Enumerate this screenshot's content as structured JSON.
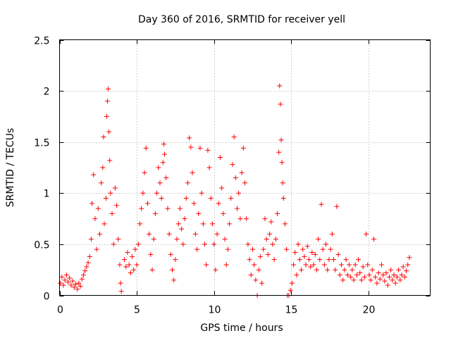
{
  "chart_data": {
    "type": "scatter",
    "title": "Day 360 of 2016, SRMTID for receiver yell",
    "xlabel": "GPS time / hours",
    "ylabel": "SRMTID / TECUs",
    "xlim": [
      0,
      24
    ],
    "ylim": [
      0,
      2.5
    ],
    "xticks": [
      0,
      5,
      10,
      15,
      20
    ],
    "yticks": [
      0,
      0.5,
      1,
      1.5,
      2,
      2.5
    ],
    "ytick_labels": [
      "0",
      "0.5",
      "1",
      "1.5",
      "2",
      "2.5"
    ],
    "grid": true,
    "marker": "+",
    "series": [
      {
        "name": "SRMTID",
        "color": "#ff0000",
        "points": [
          [
            0.05,
            0.12
          ],
          [
            0.15,
            0.18
          ],
          [
            0.25,
            0.1
          ],
          [
            0.35,
            0.15
          ],
          [
            0.45,
            0.2
          ],
          [
            0.55,
            0.13
          ],
          [
            0.65,
            0.17
          ],
          [
            0.75,
            0.1
          ],
          [
            0.85,
            0.14
          ],
          [
            0.95,
            0.08
          ],
          [
            1.05,
            0.11
          ],
          [
            1.15,
            0.06
          ],
          [
            1.25,
            0.12
          ],
          [
            1.35,
            0.09
          ],
          [
            1.45,
            0.16
          ],
          [
            1.55,
            0.2
          ],
          [
            1.65,
            0.24
          ],
          [
            1.75,
            0.28
          ],
          [
            1.85,
            0.32
          ],
          [
            1.95,
            0.38
          ],
          [
            2.05,
            0.55
          ],
          [
            2.1,
            0.9
          ],
          [
            2.2,
            1.18
          ],
          [
            2.3,
            0.75
          ],
          [
            2.4,
            0.45
          ],
          [
            2.5,
            0.85
          ],
          [
            2.6,
            0.6
          ],
          [
            2.7,
            1.1
          ],
          [
            2.8,
            1.25
          ],
          [
            2.85,
            1.55
          ],
          [
            2.9,
            0.7
          ],
          [
            3.0,
            0.95
          ],
          [
            3.05,
            1.75
          ],
          [
            3.1,
            1.9
          ],
          [
            3.15,
            2.02
          ],
          [
            3.2,
            1.6
          ],
          [
            3.25,
            1.32
          ],
          [
            3.3,
            1.0
          ],
          [
            3.4,
            0.8
          ],
          [
            3.5,
            0.5
          ],
          [
            3.6,
            1.05
          ],
          [
            3.7,
            0.88
          ],
          [
            3.8,
            0.55
          ],
          [
            3.9,
            0.3
          ],
          [
            3.95,
            0.12
          ],
          [
            4.0,
            0.04
          ],
          [
            4.2,
            0.35
          ],
          [
            4.3,
            0.28
          ],
          [
            4.4,
            0.42
          ],
          [
            4.5,
            0.3
          ],
          [
            4.6,
            0.22
          ],
          [
            4.7,
            0.38
          ],
          [
            4.8,
            0.25
          ],
          [
            4.9,
            0.45
          ],
          [
            5.0,
            0.3
          ],
          [
            5.1,
            0.5
          ],
          [
            5.2,
            0.7
          ],
          [
            5.3,
            0.85
          ],
          [
            5.4,
            1.0
          ],
          [
            5.5,
            1.2
          ],
          [
            5.6,
            1.44
          ],
          [
            5.7,
            0.9
          ],
          [
            5.8,
            0.6
          ],
          [
            5.9,
            0.4
          ],
          [
            6.0,
            0.25
          ],
          [
            6.1,
            0.55
          ],
          [
            6.2,
            0.8
          ],
          [
            6.3,
            1.0
          ],
          [
            6.4,
            1.25
          ],
          [
            6.5,
            1.1
          ],
          [
            6.6,
            0.95
          ],
          [
            6.7,
            1.3
          ],
          [
            6.75,
            1.48
          ],
          [
            6.8,
            1.38
          ],
          [
            6.9,
            1.15
          ],
          [
            7.0,
            0.85
          ],
          [
            7.1,
            0.6
          ],
          [
            7.2,
            0.4
          ],
          [
            7.3,
            0.25
          ],
          [
            7.4,
            0.15
          ],
          [
            7.5,
            0.35
          ],
          [
            7.6,
            0.55
          ],
          [
            7.7,
            0.7
          ],
          [
            7.8,
            0.85
          ],
          [
            7.9,
            0.65
          ],
          [
            8.0,
            0.5
          ],
          [
            8.1,
            0.75
          ],
          [
            8.2,
            0.95
          ],
          [
            8.3,
            1.1
          ],
          [
            8.4,
            1.54
          ],
          [
            8.5,
            1.45
          ],
          [
            8.6,
            1.2
          ],
          [
            8.7,
            0.9
          ],
          [
            8.8,
            0.6
          ],
          [
            8.9,
            0.45
          ],
          [
            9.0,
            0.8
          ],
          [
            9.1,
            1.44
          ],
          [
            9.2,
            1.0
          ],
          [
            9.3,
            0.7
          ],
          [
            9.4,
            0.5
          ],
          [
            9.5,
            0.3
          ],
          [
            9.6,
            1.42
          ],
          [
            9.7,
            1.25
          ],
          [
            9.8,
            0.95
          ],
          [
            9.9,
            0.7
          ],
          [
            10.0,
            0.5
          ],
          [
            10.1,
            0.25
          ],
          [
            10.2,
            0.6
          ],
          [
            10.3,
            0.9
          ],
          [
            10.4,
            1.35
          ],
          [
            10.5,
            1.05
          ],
          [
            10.6,
            0.8
          ],
          [
            10.7,
            0.55
          ],
          [
            10.8,
            0.3
          ],
          [
            10.9,
            0.45
          ],
          [
            11.0,
            0.7
          ],
          [
            11.1,
            0.95
          ],
          [
            11.2,
            1.28
          ],
          [
            11.3,
            1.55
          ],
          [
            11.4,
            1.15
          ],
          [
            11.5,
            0.85
          ],
          [
            11.6,
            1.0
          ],
          [
            11.7,
            0.75
          ],
          [
            11.8,
            1.2
          ],
          [
            11.9,
            1.44
          ],
          [
            12.0,
            1.1
          ],
          [
            12.1,
            0.75
          ],
          [
            12.2,
            0.5
          ],
          [
            12.3,
            0.35
          ],
          [
            12.4,
            0.2
          ],
          [
            12.5,
            0.45
          ],
          [
            12.6,
            0.3
          ],
          [
            12.7,
            0.15
          ],
          [
            12.8,
            0.0
          ],
          [
            12.9,
            0.25
          ],
          [
            13.0,
            0.38
          ],
          [
            13.1,
            0.12
          ],
          [
            13.2,
            0.45
          ],
          [
            13.3,
            0.75
          ],
          [
            13.4,
            0.55
          ],
          [
            13.5,
            0.4
          ],
          [
            13.6,
            0.6
          ],
          [
            13.7,
            0.72
          ],
          [
            13.8,
            0.5
          ],
          [
            13.9,
            0.35
          ],
          [
            14.0,
            0.55
          ],
          [
            14.1,
            0.8
          ],
          [
            14.2,
            1.4
          ],
          [
            14.25,
            2.05
          ],
          [
            14.3,
            1.87
          ],
          [
            14.35,
            1.52
          ],
          [
            14.4,
            1.3
          ],
          [
            14.45,
            1.1
          ],
          [
            14.5,
            0.95
          ],
          [
            14.6,
            0.7
          ],
          [
            14.7,
            0.45
          ],
          [
            14.75,
            0.0
          ],
          [
            14.85,
            0.0
          ],
          [
            14.95,
            0.05
          ],
          [
            15.05,
            0.12
          ],
          [
            15.15,
            0.3
          ],
          [
            15.25,
            0.42
          ],
          [
            15.35,
            0.2
          ],
          [
            15.45,
            0.5
          ],
          [
            15.55,
            0.35
          ],
          [
            15.65,
            0.25
          ],
          [
            15.75,
            0.45
          ],
          [
            15.85,
            0.38
          ],
          [
            15.95,
            0.3
          ],
          [
            16.05,
            0.48
          ],
          [
            16.15,
            0.35
          ],
          [
            16.25,
            0.28
          ],
          [
            16.35,
            0.42
          ],
          [
            16.45,
            0.3
          ],
          [
            16.55,
            0.4
          ],
          [
            16.65,
            0.25
          ],
          [
            16.75,
            0.55
          ],
          [
            16.85,
            0.35
          ],
          [
            16.95,
            0.89
          ],
          [
            17.05,
            0.45
          ],
          [
            17.15,
            0.3
          ],
          [
            17.25,
            0.5
          ],
          [
            17.35,
            0.25
          ],
          [
            17.45,
            0.35
          ],
          [
            17.55,
            0.45
          ],
          [
            17.65,
            0.6
          ],
          [
            17.75,
            0.35
          ],
          [
            17.85,
            0.25
          ],
          [
            17.95,
            0.87
          ],
          [
            18.05,
            0.4
          ],
          [
            18.15,
            0.2
          ],
          [
            18.25,
            0.3
          ],
          [
            18.35,
            0.15
          ],
          [
            18.45,
            0.25
          ],
          [
            18.55,
            0.35
          ],
          [
            18.65,
            0.2
          ],
          [
            18.75,
            0.3
          ],
          [
            18.85,
            0.18
          ],
          [
            18.95,
            0.25
          ],
          [
            19.05,
            0.15
          ],
          [
            19.15,
            0.3
          ],
          [
            19.25,
            0.2
          ],
          [
            19.35,
            0.35
          ],
          [
            19.45,
            0.22
          ],
          [
            19.55,
            0.15
          ],
          [
            19.65,
            0.28
          ],
          [
            19.75,
            0.18
          ],
          [
            19.85,
            0.6
          ],
          [
            19.95,
            0.3
          ],
          [
            20.05,
            0.2
          ],
          [
            20.15,
            0.15
          ],
          [
            20.25,
            0.25
          ],
          [
            20.35,
            0.55
          ],
          [
            20.45,
            0.18
          ],
          [
            20.55,
            0.12
          ],
          [
            20.65,
            0.22
          ],
          [
            20.75,
            0.16
          ],
          [
            20.85,
            0.3
          ],
          [
            20.95,
            0.2
          ],
          [
            21.05,
            0.14
          ],
          [
            21.15,
            0.22
          ],
          [
            21.25,
            0.1
          ],
          [
            21.35,
            0.18
          ],
          [
            21.45,
            0.25
          ],
          [
            21.55,
            0.15
          ],
          [
            21.65,
            0.2
          ],
          [
            21.75,
            0.12
          ],
          [
            21.85,
            0.18
          ],
          [
            21.95,
            0.25
          ],
          [
            22.05,
            0.15
          ],
          [
            22.15,
            0.2
          ],
          [
            22.25,
            0.28
          ],
          [
            22.35,
            0.18
          ],
          [
            22.45,
            0.24
          ],
          [
            22.55,
            0.3
          ],
          [
            22.65,
            0.37
          ]
        ]
      }
    ]
  }
}
